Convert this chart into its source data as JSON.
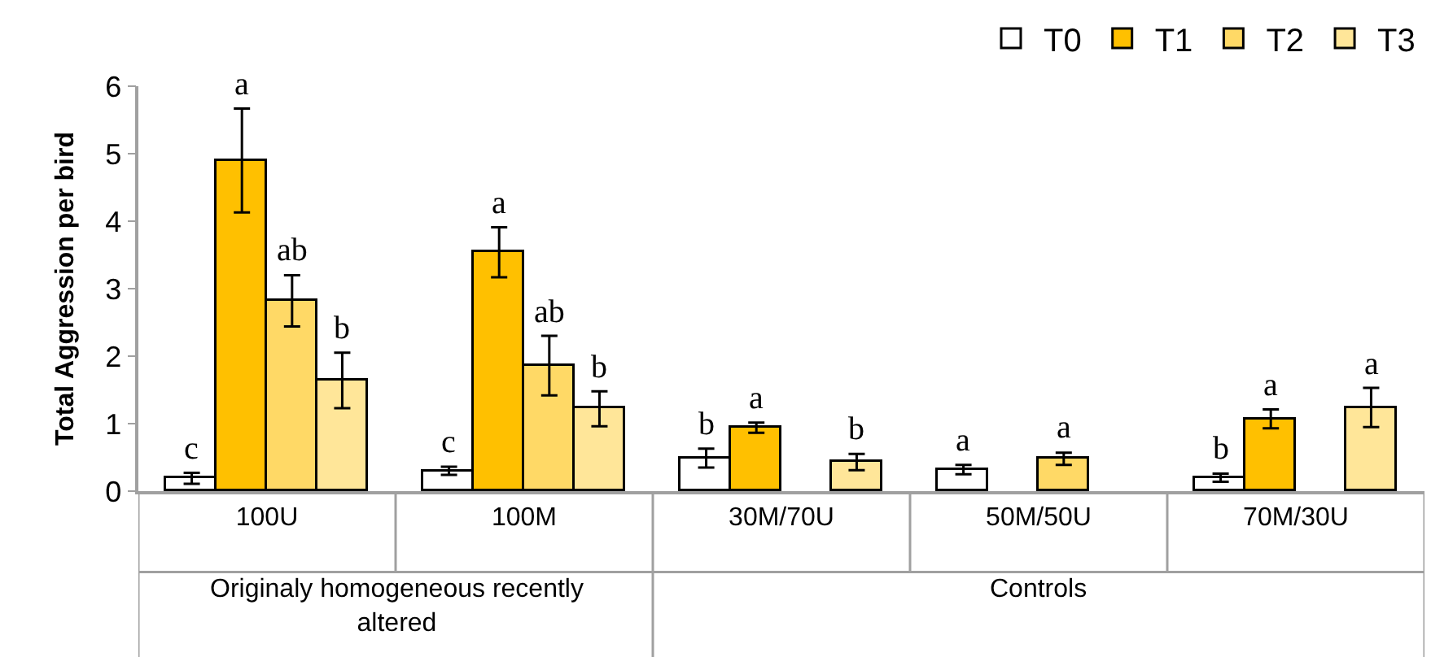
{
  "chart_data": {
    "type": "bar",
    "ylabel": "Total Aggression per bird",
    "categories": [
      "100U",
      "100M",
      "30M/70U",
      "50M/50U",
      "70M/30U"
    ],
    "series": [
      {
        "name": "T0",
        "color": "#ffffff",
        "values": [
          0.19,
          0.3,
          0.49,
          0.32,
          0.2
        ],
        "errors": [
          0.08,
          0.06,
          0.14,
          0.07,
          0.06
        ],
        "value_labels": [
          "c",
          "c",
          "b",
          "a",
          "b"
        ]
      },
      {
        "name": "T1",
        "color": "#ffc000",
        "values": [
          4.9,
          3.54,
          0.94,
          null,
          1.07
        ],
        "errors": [
          0.77,
          0.37,
          0.075,
          null,
          0.14
        ],
        "value_labels": [
          "a",
          "a",
          "a",
          null,
          "a"
        ]
      },
      {
        "name": "T2",
        "color": "#ffd966",
        "values": [
          2.82,
          1.86,
          null,
          0.48,
          null
        ],
        "errors": [
          0.38,
          0.44,
          null,
          0.09,
          null
        ],
        "value_labels": [
          "ab",
          "ab",
          null,
          "a",
          null
        ]
      },
      {
        "name": "T3",
        "color": "#ffe699",
        "values": [
          1.64,
          1.22,
          0.43,
          null,
          1.24
        ],
        "errors": [
          0.41,
          0.26,
          0.12,
          null,
          0.29
        ],
        "value_labels": [
          "b",
          "b",
          "b",
          null,
          "a"
        ]
      }
    ],
    "annotations": [
      "Originaly homogeneous recently altered",
      "Controls"
    ],
    "ylim": [
      0,
      6
    ],
    "yticks": [
      0,
      1,
      2,
      3,
      4,
      5,
      6
    ],
    "legend": "top right"
  }
}
